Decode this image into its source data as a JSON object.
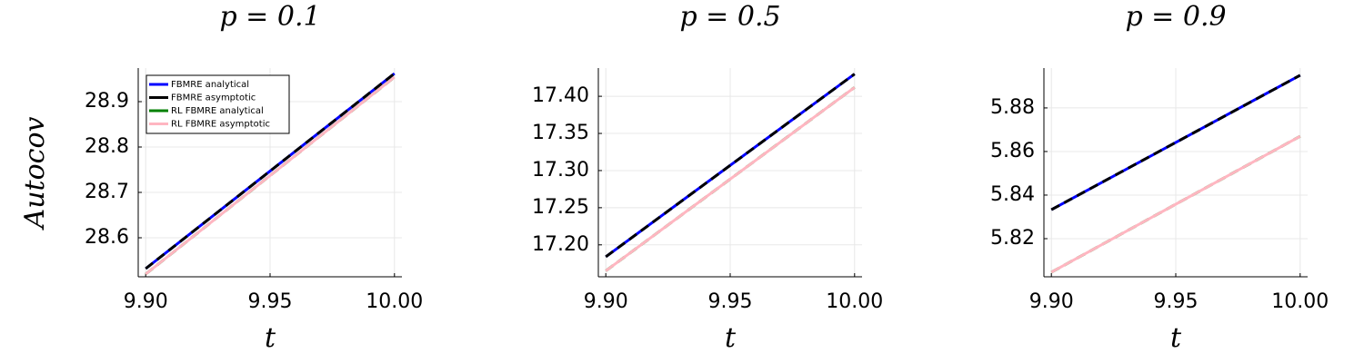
{
  "chart_data": [
    {
      "type": "line",
      "title": "p = 0.1",
      "x_label": "t",
      "y_label": "Autocov",
      "x": [
        9.9,
        10.0
      ],
      "series": [
        {
          "name": "FBMRE analytical",
          "color": "#0000ff",
          "dash": false,
          "values": [
            28.532,
            28.962
          ]
        },
        {
          "name": "FBMRE asymptotic",
          "color": "#000000",
          "dash": true,
          "values": [
            28.532,
            28.962
          ]
        },
        {
          "name": "RL FBMRE analytical",
          "color": "#008000",
          "dash": true,
          "values": [
            28.52,
            28.954
          ]
        },
        {
          "name": "RL FBMRE asymptotic",
          "color": "#ffb6c1",
          "dash": false,
          "values": [
            28.52,
            28.954
          ]
        }
      ],
      "xlim": [
        9.897,
        10.003
      ],
      "ylim": [
        28.514,
        28.974
      ],
      "xticks": [
        {
          "value": 9.9,
          "label": "9.90"
        },
        9.95,
        {
          "value": 10.0,
          "label": "10.00"
        }
      ],
      "yticks": [
        28.6,
        28.7,
        28.8,
        28.9
      ],
      "grid": true,
      "legend": "top-left"
    },
    {
      "type": "line",
      "title": "p = 0.5",
      "x_label": "t",
      "x": [
        9.9,
        10.0
      ],
      "series": [
        {
          "color": "#0000ff",
          "dash": false,
          "values": [
            17.184,
            17.43
          ]
        },
        {
          "color": "#000000",
          "dash": true,
          "values": [
            17.184,
            17.43
          ]
        },
        {
          "color": "#008000",
          "dash": true,
          "values": [
            17.165,
            17.412
          ]
        },
        {
          "color": "#ffb6c1",
          "dash": false,
          "values": [
            17.165,
            17.412
          ]
        }
      ],
      "xlim": [
        9.897,
        10.003
      ],
      "ylim": [
        17.157,
        17.438
      ],
      "xticks": [
        {
          "value": 9.9,
          "label": "9.90"
        },
        9.95,
        {
          "value": 10.0,
          "label": "10.00"
        }
      ],
      "yticks": [
        {
          "value": 17.2,
          "label": "17.20"
        },
        17.25,
        {
          "value": 17.3,
          "label": "17.30"
        },
        17.35,
        {
          "value": 17.4,
          "label": "17.40"
        }
      ],
      "grid": true
    },
    {
      "type": "line",
      "title": "p = 0.9",
      "x_label": "t",
      "x": [
        9.9,
        10.0
      ],
      "series": [
        {
          "color": "#0000ff",
          "dash": false,
          "values": [
            5.8333,
            5.895
          ]
        },
        {
          "color": "#000000",
          "dash": true,
          "values": [
            5.8333,
            5.895
          ]
        },
        {
          "color": "#008000",
          "dash": true,
          "values": [
            5.8046,
            5.867
          ]
        },
        {
          "color": "#ffb6c1",
          "dash": false,
          "values": [
            5.8046,
            5.867
          ]
        }
      ],
      "xlim": [
        9.897,
        10.003
      ],
      "ylim": [
        5.8025,
        5.8983
      ],
      "xticks": [
        {
          "value": 9.9,
          "label": "9.90"
        },
        9.95,
        {
          "value": 10.0,
          "label": "10.00"
        }
      ],
      "yticks": [
        5.82,
        5.84,
        5.86,
        5.88
      ],
      "grid": true
    }
  ]
}
